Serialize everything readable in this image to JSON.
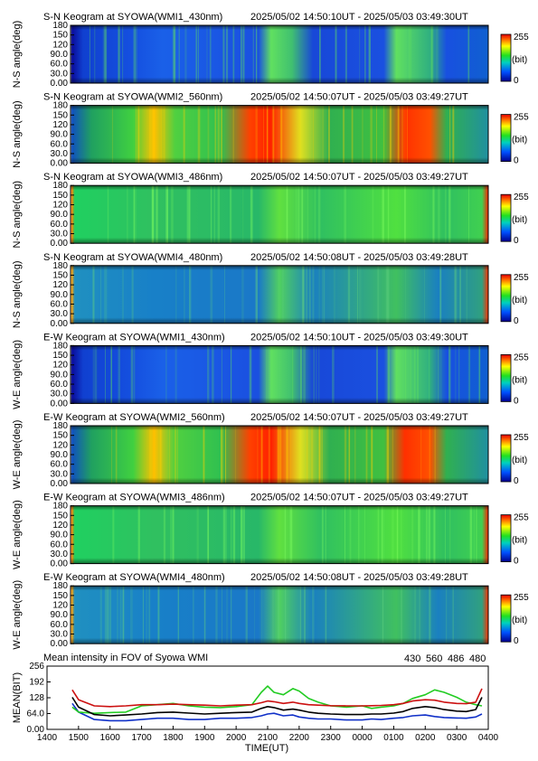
{
  "keograms": [
    {
      "title": "S-N Keogram at SYOWA(WMI1_430nm)",
      "range": "2025/05/02 14:50:10UT - 2025/05/03 03:49:30UT",
      "ylabel": "N-S angle(deg)",
      "intensity": "low"
    },
    {
      "title": "S-N Keogram at SYOWA(WMI2_560nm)",
      "range": "2025/05/02 14:50:07UT - 2025/05/03 03:49:27UT",
      "ylabel": "N-S angle(deg)",
      "intensity": "high"
    },
    {
      "title": "S-N Keogram at SYOWA(WMI3_486nm)",
      "range": "2025/05/02 14:50:07UT - 2025/05/03 03:49:27UT",
      "ylabel": "N-S angle(deg)",
      "intensity": "mid"
    },
    {
      "title": "S-N Keogram at SYOWA(WMI4_480nm)",
      "range": "2025/05/02 14:50:08UT - 2025/05/03 03:49:28UT",
      "ylabel": "N-S angle(deg)",
      "intensity": "midlow"
    },
    {
      "title": "E-W Keogram at SYOWA(WMI1_430nm)",
      "range": "2025/05/02 14:50:10UT - 2025/05/03 03:49:30UT",
      "ylabel": "W-E angle(deg)",
      "intensity": "low"
    },
    {
      "title": "E-W Keogram at SYOWA(WMI2_560nm)",
      "range": "2025/05/02 14:50:07UT - 2025/05/03 03:49:27UT",
      "ylabel": "W-E angle(deg)",
      "intensity": "high"
    },
    {
      "title": "E-W Keogram at SYOWA(WMI3_486nm)",
      "range": "2025/05/02 14:50:07UT - 2025/05/03 03:49:27UT",
      "ylabel": "W-E angle(deg)",
      "intensity": "mid"
    },
    {
      "title": "E-W Keogram at SYOWA(WMI4_480nm)",
      "range": "2025/05/02 14:50:08UT - 2025/05/03 03:49:28UT",
      "ylabel": "W-E angle(deg)",
      "intensity": "midlow"
    }
  ],
  "keogram_yticks": [
    "0.00",
    "30.0",
    "60.0",
    "90.0",
    "120",
    "150",
    "180"
  ],
  "colorbar": {
    "max": "255",
    "unit": "(bit)",
    "min": "0"
  },
  "chart_data": {
    "type": "line",
    "title": "Mean intensity in FOV of Syowa WMI",
    "xlabel": "TIME(UT)",
    "ylabel": "MEAN(BIT)",
    "x_ticks": [
      "1400",
      "1500",
      "1600",
      "1700",
      "1800",
      "1900",
      "2000",
      "2100",
      "2200",
      "2300",
      "0000",
      "0100",
      "0200",
      "0300",
      "0400"
    ],
    "y_ticks": [
      "0.00",
      "64.0",
      "128",
      "192",
      "256"
    ],
    "ylim": [
      0,
      256
    ],
    "x": [
      14.8,
      15.0,
      15.5,
      16.0,
      16.5,
      17.0,
      17.5,
      18.0,
      18.5,
      19.0,
      19.5,
      20.0,
      20.5,
      20.8,
      21.0,
      21.2,
      21.5,
      21.8,
      22.0,
      22.3,
      22.6,
      23.0,
      23.5,
      24.0,
      24.3,
      24.6,
      25.0,
      25.3,
      25.6,
      26.0,
      26.3,
      26.6,
      27.0,
      27.3,
      27.6,
      27.8
    ],
    "series": [
      {
        "name": "430",
        "color": "#1030c8",
        "values": [
          105,
          70,
          40,
          35,
          35,
          40,
          45,
          45,
          40,
          40,
          45,
          45,
          48,
          55,
          62,
          65,
          55,
          58,
          50,
          45,
          42,
          42,
          38,
          38,
          42,
          40,
          45,
          48,
          55,
          58,
          52,
          48,
          46,
          45,
          50,
          62
        ]
      },
      {
        "name": "560",
        "color": "#22cc22",
        "values": [
          90,
          70,
          65,
          68,
          70,
          95,
          100,
          105,
          95,
          90,
          88,
          92,
          100,
          150,
          175,
          150,
          140,
          165,
          155,
          125,
          110,
          95,
          90,
          95,
          85,
          90,
          95,
          105,
          125,
          140,
          160,
          150,
          130,
          110,
          100,
          95
        ]
      },
      {
        "name": "486",
        "color": "#cc1010",
        "values": [
          160,
          120,
          95,
          92,
          95,
          100,
          100,
          102,
          100,
          98,
          95,
          98,
          100,
          108,
          115,
          112,
          105,
          110,
          105,
          100,
          98,
          96,
          95,
          95,
          96,
          97,
          100,
          105,
          115,
          120,
          118,
          110,
          105,
          104,
          110,
          165
        ]
      },
      {
        "name": "480",
        "color": "#000000",
        "values": [
          130,
          90,
          60,
          55,
          58,
          62,
          68,
          70,
          66,
          62,
          65,
          68,
          70,
          85,
          92,
          88,
          78,
          82,
          78,
          70,
          65,
          62,
          60,
          60,
          62,
          62,
          66,
          72,
          85,
          92,
          88,
          80,
          74,
          72,
          80,
          130
        ]
      }
    ]
  }
}
